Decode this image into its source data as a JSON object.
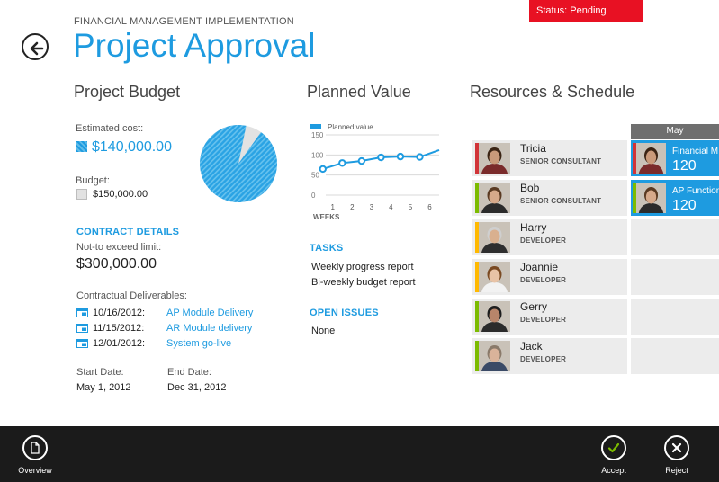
{
  "header": {
    "supertitle": "FINANCIAL MANAGEMENT IMPLEMENTATION",
    "title": "Project Approval",
    "status": "Status: Pending"
  },
  "budget": {
    "heading": "Project Budget",
    "estimated_label": "Estimated cost:",
    "estimated_value": "$140,000.00",
    "budget_label": "Budget:",
    "budget_value": "$150,000.00",
    "estimated_fraction": 0.9333,
    "colors": {
      "estimated": "#1e9be0",
      "budget": "#e2e2e2"
    }
  },
  "contract": {
    "heading": "CONTRACT DETAILS",
    "nte_label": "Not-to exceed limit:",
    "nte_value": "$300,000.00",
    "deliverables_label": "Contractual Deliverables:",
    "deliverables": [
      {
        "date": "10/16/2012:",
        "name": "AP Module Delivery"
      },
      {
        "date": "11/15/2012:",
        "name": "AR Module delivery"
      },
      {
        "date": "12/01/2012:",
        "name": "System go-live"
      }
    ],
    "start_label": "Start Date:",
    "start_value": "May 1, 2012",
    "end_label": "End Date:",
    "end_value": "Dec 31, 2012"
  },
  "planned": {
    "heading": "Planned Value",
    "chart_data": {
      "type": "line",
      "series": [
        {
          "name": "Planned value",
          "values": [
            65,
            80,
            85,
            94,
            96,
            95,
            112
          ]
        }
      ],
      "x": [
        0.5,
        1.5,
        2.5,
        3.5,
        4.5,
        5.5,
        6.5
      ],
      "xticks": [
        "1",
        "2",
        "3",
        "4",
        "5",
        "6"
      ],
      "yticks": [
        "150",
        "100",
        "50",
        "0"
      ],
      "xlabel": "WEEKS",
      "ylim": [
        0,
        150
      ],
      "xlim": [
        0,
        6.5
      ],
      "grid": true,
      "legend": "top-left",
      "color": "#1e9be0"
    }
  },
  "tasks": {
    "heading": "TASKS",
    "items": [
      "Weekly progress report",
      "Bi-weekly budget report"
    ]
  },
  "issues": {
    "heading": "OPEN ISSUES",
    "value": "None"
  },
  "resources": {
    "heading": "Resources & Schedule",
    "month": "May",
    "people": [
      {
        "name": "Tricia",
        "role": "SENIOR CONSULTANT",
        "color": "#d13438",
        "skin": "#c99a7a",
        "hair": "#3b2414",
        "shirt": "#7a2b2b"
      },
      {
        "name": "Bob",
        "role": "SENIOR CONSULTANT",
        "color": "#7cbb00",
        "skin": "#d6a98a",
        "hair": "#5a3a22",
        "shirt": "#2b2b2b"
      },
      {
        "name": "Harry",
        "role": "DEVELOPER",
        "color": "#ffb900",
        "skin": "#d9b08f",
        "hair": "#cfcfcf",
        "shirt": "#2e2e2e"
      },
      {
        "name": "Joannie",
        "role": "DEVELOPER",
        "color": "#ffb900",
        "skin": "#e8c3a6",
        "hair": "#7a4a22",
        "shirt": "#f2f2f2"
      },
      {
        "name": "Gerry",
        "role": "DEVELOPER",
        "color": "#7cbb00",
        "skin": "#b8856a",
        "hair": "#1e1e1e",
        "shirt": "#2b2b2b"
      },
      {
        "name": "Jack",
        "role": "DEVELOPER",
        "color": "#7cbb00",
        "skin": "#d9b39a",
        "hair": "#8a7a6a",
        "shirt": "#3a4a66"
      }
    ],
    "assignments": [
      {
        "title": "Financial M",
        "value": "120",
        "color": "#d13438",
        "person": 0
      },
      {
        "title": "AP Function",
        "value": "120",
        "color": "#7cbb00",
        "person": 1
      }
    ]
  },
  "appbar": {
    "overview": "Overview",
    "accept": "Accept",
    "reject": "Reject",
    "accept_color": "#7cbb00"
  }
}
